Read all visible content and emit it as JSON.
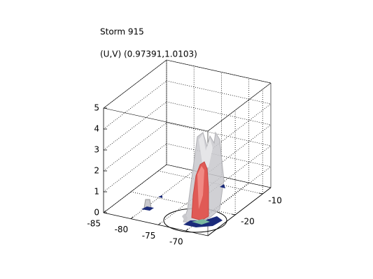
{
  "chart_data": {
    "type": "isosurface3d",
    "title": "Storm 915",
    "subtitle": "(U,V) (0.97391,1.0103)",
    "xlim": [
      -85,
      -66
    ],
    "xticks": [
      -85,
      -80,
      -75,
      -70
    ],
    "ylim": [
      -30,
      -7
    ],
    "yticks": [
      -20,
      -10
    ],
    "zlim": [
      0,
      5
    ],
    "zticks": [
      0,
      1,
      2,
      3,
      4,
      5
    ],
    "grid": true
  }
}
